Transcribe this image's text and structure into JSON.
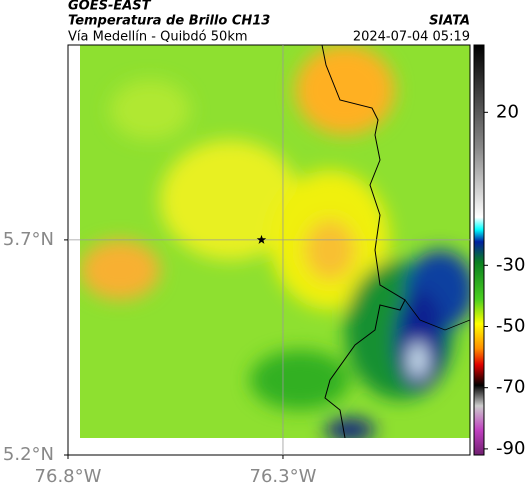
{
  "chart_data": {
    "type": "map",
    "title": "GOES-EAST",
    "subtitle": "Temperatura de Brillo CH13",
    "region": "Vía Medellín - Quibdó 50km",
    "source": "SIATA",
    "timestamp": "2024-07-04 05:19",
    "xlim": [
      -76.8,
      -75.865
    ],
    "ylim": [
      5.2,
      6.153
    ],
    "xticks": [
      {
        "value": -76.8,
        "label": "76.8°W"
      },
      {
        "value": -76.3,
        "label": "76.3°W"
      }
    ],
    "yticks": [
      {
        "value": 5.2,
        "label": "5.2°N"
      },
      {
        "value": 5.7,
        "label": "5.7°N"
      }
    ],
    "grid_lines": {
      "x": [
        -76.3
      ],
      "y": [
        5.7
      ]
    },
    "marker": {
      "x": -76.35,
      "y": 5.7
    },
    "clim": [
      -92,
      42
    ],
    "cticks": [
      20,
      -30,
      -50,
      -70,
      -90
    ]
  }
}
